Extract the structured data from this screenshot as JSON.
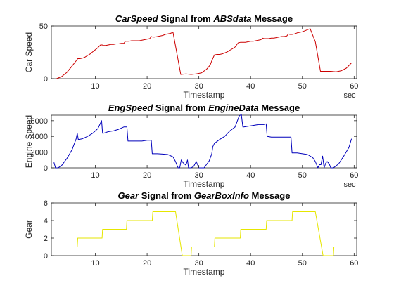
{
  "chart_data": [
    {
      "type": "line",
      "title_parts": [
        {
          "text": "CarSpeed",
          "italic": true
        },
        {
          "text": " Signal from ",
          "italic": false
        },
        {
          "text": "ABSdata",
          "italic": true
        },
        {
          "text": " Message",
          "italic": false
        }
      ],
      "xlabel": "Timestamp",
      "x_unit": "sec",
      "ylabel": "Car Speed",
      "xlim": [
        1.5,
        60.5
      ],
      "ylim": [
        0,
        50
      ],
      "xticks": [
        10,
        20,
        30,
        40,
        50,
        60
      ],
      "yticks": [
        0,
        50
      ],
      "color": "#cc0000",
      "x": [
        2.5,
        3.5,
        4.5,
        5.5,
        6.3,
        6.6,
        7.0,
        7.5,
        8.0,
        8.5,
        9.0,
        9.5,
        10.0,
        10.5,
        11.0,
        11.3,
        11.6,
        12.0,
        12.5,
        13.0,
        13.5,
        14.0,
        14.5,
        15.0,
        15.5,
        15.8,
        16.1,
        16.5,
        17.0,
        17.5,
        18.0,
        18.5,
        19.0,
        19.5,
        20.0,
        20.5,
        20.8,
        21.1,
        21.5,
        22.0,
        22.5,
        23.0,
        23.5,
        24.0,
        24.5,
        25.0,
        25.5,
        26.5,
        27.5,
        28.5,
        29.5,
        30.5,
        31.5,
        32.2,
        32.5,
        33.0,
        33.5,
        34.0,
        34.5,
        35.0,
        35.5,
        36.0,
        36.5,
        37.0,
        37.3,
        37.6,
        38.0,
        38.5,
        39.0,
        39.5,
        40.0,
        40.5,
        41.0,
        41.5,
        42.0,
        42.3,
        42.6,
        43.0,
        43.5,
        44.0,
        44.5,
        45.0,
        45.5,
        46.0,
        46.5,
        47.0,
        47.3,
        47.6,
        48.0,
        48.5,
        49.0,
        49.5,
        50.0,
        50.5,
        51.0,
        51.5,
        52.5,
        53.5,
        54.5,
        55.5,
        56.5,
        57.5,
        58.5,
        59.5
      ],
      "y": [
        0,
        2,
        6,
        12,
        17,
        19,
        19,
        19.5,
        20.5,
        22,
        23.5,
        25.5,
        27.5,
        29.5,
        32,
        32,
        31.5,
        31.5,
        32,
        32.5,
        32.5,
        33,
        33,
        33.5,
        33.5,
        35.5,
        35.5,
        35.5,
        36,
        36,
        36,
        36,
        36.5,
        37,
        37.5,
        38,
        40,
        39.5,
        39.5,
        40,
        40.5,
        41,
        42,
        42.5,
        43,
        44,
        31,
        4,
        4.5,
        4,
        4.5,
        5.5,
        9,
        13,
        17,
        22.5,
        23,
        23,
        23.5,
        24.5,
        25.5,
        27,
        28.5,
        30,
        32,
        34,
        34.5,
        34.5,
        34.5,
        35,
        35.5,
        35.5,
        36,
        36.5,
        37,
        38.5,
        38,
        38,
        38,
        38.5,
        38.5,
        39,
        39.5,
        40,
        40,
        40.5,
        42.5,
        42,
        42,
        42.5,
        43.5,
        44,
        44.5,
        45.5,
        46.5,
        47.5,
        35,
        7,
        7,
        7,
        6.5,
        7.5,
        10,
        15
      ]
    },
    {
      "type": "line",
      "title_parts": [
        {
          "text": "EngSpeed",
          "italic": true
        },
        {
          "text": " Signal from ",
          "italic": false
        },
        {
          "text": "EngineData",
          "italic": true
        },
        {
          "text": " Message",
          "italic": false
        }
      ],
      "xlabel": "Timestamp",
      "x_unit": "sec",
      "ylabel": "Engine Speed",
      "xlim": [
        1.5,
        60.5
      ],
      "ylim": [
        0,
        6700
      ],
      "xticks": [
        10,
        20,
        30,
        40,
        50,
        60
      ],
      "yticks": [
        0,
        2000,
        4000,
        6000
      ],
      "color": "#0000bb",
      "x": [
        2.0,
        2.3,
        2.8,
        3.5,
        4.5,
        5.5,
        6.3,
        6.5,
        6.7,
        7.5,
        8.5,
        9.5,
        10.5,
        11.2,
        11.4,
        11.6,
        12.5,
        13.5,
        14.5,
        15.5,
        16.1,
        16.3,
        17.0,
        18.0,
        19.0,
        20.0,
        20.8,
        21.0,
        21.2,
        22.0,
        23.0,
        24.0,
        25.0,
        25.5,
        25.8,
        26.0,
        26.3,
        26.6,
        26.9,
        27.2,
        27.5,
        27.8,
        28.0,
        28.5,
        29.0,
        29.5,
        30.0,
        31.0,
        32.0,
        32.5,
        32.7,
        33.0,
        34.0,
        35.0,
        36.0,
        37.0,
        37.8,
        38.2,
        38.5,
        38.7,
        39.5,
        40.5,
        41.5,
        42.5,
        43.0,
        43.2,
        44.0,
        45.0,
        46.0,
        47.0,
        47.8,
        48.0,
        48.2,
        49.0,
        50.0,
        51.0,
        52.0,
        52.5,
        53.0,
        53.3,
        53.6,
        53.9,
        54.2,
        54.5,
        54.8,
        55.2,
        55.5,
        56.0,
        57.0,
        58.0,
        59.0,
        59.5
      ],
      "y": [
        700,
        0,
        0,
        300,
        1200,
        2300,
        3700,
        4400,
        3600,
        3700,
        4000,
        4400,
        5000,
        6000,
        4400,
        4400,
        4600,
        4700,
        4900,
        5200,
        5200,
        3400,
        3400,
        3400,
        3400,
        3500,
        3500,
        1800,
        1800,
        1800,
        1750,
        1700,
        1400,
        800,
        300,
        0,
        0,
        1000,
        700,
        500,
        350,
        1000,
        0,
        0,
        200,
        800,
        0,
        0,
        900,
        1800,
        2700,
        3100,
        3600,
        4000,
        4700,
        5200,
        6600,
        6800,
        5200,
        5200,
        5300,
        5400,
        5500,
        5500,
        5600,
        4000,
        3900,
        3900,
        3900,
        3900,
        3900,
        1900,
        1900,
        1900,
        1800,
        1700,
        1300,
        800,
        0,
        400,
        400,
        1500,
        0,
        600,
        800,
        500,
        0,
        0,
        500,
        1500,
        2600,
        3700
      ]
    },
    {
      "type": "line",
      "title_parts": [
        {
          "text": "Gear",
          "italic": true
        },
        {
          "text": " Signal from ",
          "italic": false
        },
        {
          "text": "GearBoxInfo",
          "italic": true
        },
        {
          "text": " Message",
          "italic": false
        }
      ],
      "xlabel": "Timestamp",
      "x_unit": "",
      "ylabel": "Gear",
      "xlim": [
        1.5,
        60.5
      ],
      "ylim": [
        0,
        6
      ],
      "xticks": [
        10,
        20,
        30,
        40,
        50,
        60
      ],
      "yticks": [
        0,
        2,
        4,
        6
      ],
      "color": "#e6e600",
      "x": [
        2.0,
        6.5,
        6.6,
        11.3,
        11.4,
        16.0,
        16.1,
        21.0,
        21.1,
        25.5,
        26.8,
        28.5,
        28.6,
        33.0,
        33.1,
        38.0,
        38.1,
        43.0,
        43.1,
        48.0,
        48.1,
        52.5,
        54.0,
        56.0,
        56.1,
        59.5
      ],
      "y": [
        1,
        1,
        2,
        2,
        3,
        3,
        4,
        4,
        5,
        5,
        0,
        0,
        1,
        1,
        2,
        2,
        3,
        3,
        4,
        4,
        5,
        5,
        0,
        0,
        1,
        1
      ]
    }
  ]
}
